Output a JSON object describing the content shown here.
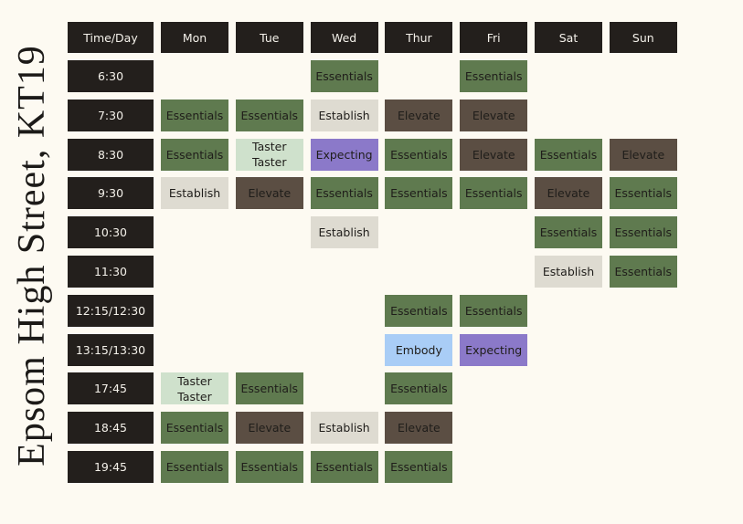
{
  "title": "Epsom High Street, KT19",
  "header": [
    "Time/Day",
    "Mon",
    "Tue",
    "Wed",
    "Thur",
    "Fri",
    "Sat",
    "Sun"
  ],
  "rows": [
    {
      "time": "6:30",
      "cells": [
        null,
        null,
        {
          "text": "Essentials",
          "color": "#5f7a4f"
        },
        null,
        {
          "text": "Essentials",
          "color": "#5f7a4f"
        },
        null,
        null
      ]
    },
    {
      "time": "7:30",
      "cells": [
        {
          "text": "Essentials",
          "color": "#5f7a4f"
        },
        {
          "text": "Essentials",
          "color": "#5f7a4f"
        },
        {
          "text": "Establish",
          "color": "#dedbd1"
        },
        {
          "text": "Elevate",
          "color": "#5b4e43"
        },
        {
          "text": "Elevate",
          "color": "#5b4e43"
        },
        null,
        null
      ]
    },
    {
      "time": "8:30",
      "cells": [
        {
          "text": "Essentials",
          "color": "#5f7a4f"
        },
        {
          "lines": [
            "Taster",
            "Taster"
          ],
          "color": "#cfe1cc"
        },
        {
          "text": "Expecting",
          "color": "#8b79c9"
        },
        {
          "text": "Essentials",
          "color": "#5f7a4f"
        },
        {
          "text": "Elevate",
          "color": "#5b4e43"
        },
        {
          "text": "Essentials",
          "color": "#5f7a4f"
        },
        {
          "text": "Elevate",
          "color": "#5b4e43"
        }
      ]
    },
    {
      "time": "9:30",
      "cells": [
        {
          "text": "Establish",
          "color": "#dedbd1"
        },
        {
          "text": "Elevate",
          "color": "#5b4e43"
        },
        {
          "text": "Essentials",
          "color": "#5f7a4f"
        },
        {
          "text": "Essentials",
          "color": "#5f7a4f"
        },
        {
          "text": "Essentials",
          "color": "#5f7a4f"
        },
        {
          "text": "Elevate",
          "color": "#5b4e43"
        },
        {
          "text": "Essentials",
          "color": "#5f7a4f"
        }
      ]
    },
    {
      "time": "10:30",
      "cells": [
        null,
        null,
        {
          "text": "Establish",
          "color": "#dedbd1"
        },
        null,
        null,
        {
          "text": "Essentials",
          "color": "#5f7a4f"
        },
        {
          "text": "Essentials",
          "color": "#5f7a4f"
        }
      ]
    },
    {
      "time": "11:30",
      "cells": [
        null,
        null,
        null,
        null,
        null,
        {
          "text": "Establish",
          "color": "#dedbd1"
        },
        {
          "text": "Essentials",
          "color": "#5f7a4f"
        }
      ]
    },
    {
      "time": "12:15/12:30",
      "cells": [
        null,
        null,
        null,
        {
          "text": "Essentials",
          "color": "#5f7a4f"
        },
        {
          "text": "Essentials",
          "color": "#5f7a4f"
        },
        null,
        null
      ]
    },
    {
      "time": "13:15/13:30",
      "cells": [
        null,
        null,
        null,
        {
          "text": "Embody",
          "color": "#a9cdf6"
        },
        {
          "text": "Expecting",
          "color": "#8b79c9"
        },
        null,
        null
      ]
    },
    {
      "time": "17:45",
      "cells": [
        {
          "lines": [
            "Taster",
            "Taster"
          ],
          "color": "#cfe1cc"
        },
        {
          "text": "Essentials",
          "color": "#5f7a4f"
        },
        null,
        {
          "text": "Essentials",
          "color": "#5f7a4f"
        },
        null,
        null,
        null
      ]
    },
    {
      "time": "18:45",
      "cells": [
        {
          "text": "Essentials",
          "color": "#5f7a4f"
        },
        {
          "text": "Elevate",
          "color": "#5b4e43"
        },
        {
          "text": "Establish",
          "color": "#dedbd1"
        },
        {
          "text": "Elevate",
          "color": "#5b4e43"
        },
        null,
        null,
        null
      ]
    },
    {
      "time": "19:45",
      "cells": [
        {
          "text": "Essentials",
          "color": "#5f7a4f"
        },
        {
          "text": "Essentials",
          "color": "#5f7a4f"
        },
        {
          "text": "Essentials",
          "color": "#5f7a4f"
        },
        {
          "text": "Essentials",
          "color": "#5f7a4f"
        },
        null,
        null,
        null
      ]
    }
  ]
}
